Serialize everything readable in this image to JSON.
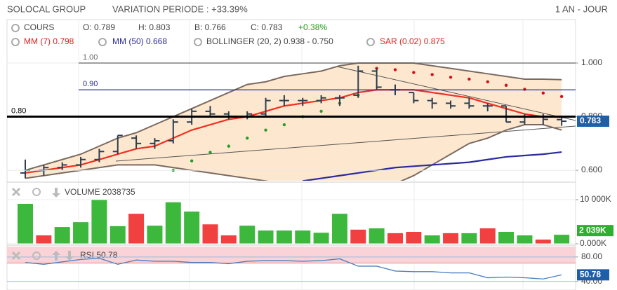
{
  "header": {
    "title": "SOLOCAL GROUP",
    "variation": "VARIATION PERIODE : +33.39%",
    "period": "1 AN - JOUR"
  },
  "legend": {
    "cours": "COURS",
    "open": "O: 0.789",
    "high": "H: 0.803",
    "low": "B: 0.766",
    "close": "C: 0.783",
    "change": "+0.38%",
    "mm7": "MM (7) 0.798",
    "mm50": "MM (50) 0.668",
    "bollinger": "BOLLINGER (20, 2) 0.938 - 0.750",
    "sar": "SAR (0.02) 0.875"
  },
  "chart_data": [
    {
      "type": "ohlc",
      "open": [
        0.59,
        0.6,
        0.61,
        0.62,
        0.64,
        0.67,
        0.72,
        0.7,
        0.71,
        0.78,
        0.82,
        0.81,
        0.8,
        0.81,
        0.86,
        0.86,
        0.86,
        0.87,
        0.88,
        0.97,
        0.9,
        0.89,
        0.86,
        0.85,
        0.85,
        0.84,
        0.84,
        0.78,
        0.8,
        0.789
      ],
      "high": [
        0.64,
        0.62,
        0.63,
        0.65,
        0.68,
        0.73,
        0.73,
        0.72,
        0.79,
        0.83,
        0.84,
        0.82,
        0.82,
        0.87,
        0.88,
        0.87,
        0.88,
        0.88,
        0.99,
        0.98,
        0.92,
        0.89,
        0.87,
        0.86,
        0.87,
        0.85,
        0.84,
        0.81,
        0.81,
        0.803
      ],
      "low": [
        0.57,
        0.58,
        0.6,
        0.61,
        0.63,
        0.66,
        0.68,
        0.68,
        0.7,
        0.77,
        0.8,
        0.79,
        0.79,
        0.8,
        0.84,
        0.84,
        0.85,
        0.84,
        0.87,
        0.9,
        0.88,
        0.85,
        0.83,
        0.83,
        0.83,
        0.82,
        0.78,
        0.77,
        0.77,
        0.766
      ],
      "close": [
        0.6,
        0.61,
        0.62,
        0.64,
        0.67,
        0.73,
        0.7,
        0.71,
        0.78,
        0.82,
        0.81,
        0.8,
        0.81,
        0.86,
        0.86,
        0.86,
        0.87,
        0.87,
        0.97,
        0.91,
        0.9,
        0.86,
        0.85,
        0.84,
        0.84,
        0.84,
        0.78,
        0.8,
        0.79,
        0.783
      ],
      "color": "#2d3e50",
      "series": [
        {
          "name": "BOLLINGER UP",
          "kind": "band-upper",
          "color": "#7a6a60",
          "values": [
            0.6,
            0.62,
            0.64,
            0.66,
            0.69,
            0.72,
            0.74,
            0.77,
            0.8,
            0.83,
            0.86,
            0.89,
            0.92,
            0.93,
            0.95,
            0.96,
            0.97,
            0.99,
            1.0,
            1.0,
            1.0,
            1.0,
            0.99,
            0.98,
            0.97,
            0.96,
            0.95,
            0.94,
            0.94,
            0.938
          ]
        },
        {
          "name": "BOLLINGER DOWN",
          "kind": "band-lower",
          "color": "#7a6a60",
          "values": [
            0.57,
            0.58,
            0.59,
            0.6,
            0.61,
            0.62,
            0.62,
            0.62,
            0.61,
            0.6,
            0.59,
            0.58,
            0.57,
            0.56,
            0.55,
            0.54,
            0.53,
            0.52,
            0.52,
            0.53,
            0.55,
            0.58,
            0.62,
            0.66,
            0.7,
            0.72,
            0.75,
            0.77,
            0.77,
            0.75
          ]
        },
        {
          "name": "MM (7)",
          "kind": "line",
          "color": "#f03020",
          "values": [
            0.59,
            0.6,
            0.61,
            0.62,
            0.64,
            0.66,
            0.68,
            0.69,
            0.72,
            0.75,
            0.77,
            0.79,
            0.8,
            0.82,
            0.84,
            0.85,
            0.86,
            0.87,
            0.89,
            0.9,
            0.9,
            0.9,
            0.89,
            0.88,
            0.87,
            0.85,
            0.83,
            0.81,
            0.8,
            0.798
          ]
        },
        {
          "name": "MM (50)",
          "kind": "line",
          "color": "#2a2aa0",
          "values": [
            null,
            null,
            null,
            null,
            null,
            null,
            null,
            null,
            null,
            null,
            null,
            null,
            null,
            null,
            null,
            0.56,
            0.57,
            0.58,
            0.59,
            0.6,
            0.61,
            0.615,
            0.62,
            0.625,
            0.63,
            0.64,
            0.65,
            0.655,
            0.66,
            0.668
          ]
        },
        {
          "name": "SAR (0.02)",
          "kind": "dots",
          "values": [
            null,
            null,
            null,
            null,
            null,
            null,
            null,
            null,
            0.6,
            0.635,
            0.667,
            0.69,
            0.72,
            0.75,
            0.77,
            0.8,
            0.82,
            0.85,
            0.88,
            0.98,
            0.975,
            0.965,
            0.957,
            0.947,
            0.94,
            0.93,
            0.917,
            0.902,
            0.888,
            0.875
          ],
          "colors": [
            "#2a9a2a",
            "#2a9a2a",
            "#2a9a2a",
            "#2a9a2a",
            "#2a9a2a",
            "#2a9a2a",
            "#2a9a2a",
            "#2a9a2a",
            "#2a9a2a",
            "#2a9a2a",
            "#2a9a2a",
            "#2a9a2a",
            "#2a9a2a",
            "#2a9a2a",
            "#2a9a2a",
            "#2a9a2a",
            "#2a9a2a",
            "#2a9a2a",
            "#2a9a2a",
            "#d0101a",
            "#d0101a",
            "#d0101a",
            "#d0101a",
            "#d0101a",
            "#d0101a",
            "#d0101a",
            "#d0101a",
            "#d0101a",
            "#d0101a",
            "#d0101a"
          ]
        }
      ],
      "levels": [
        {
          "value": 1,
          "label": "1.00",
          "color": "#666666"
        },
        {
          "value": 0.9,
          "label": "0.90",
          "color": "#2a2aa0"
        },
        {
          "value": 0.8,
          "label": "0.80",
          "color": "#000000"
        }
      ],
      "ylim": [
        0.561,
        1.162
      ],
      "yticks": [
        {
          "value": 1,
          "label": "1.000"
        },
        {
          "value": 0.8,
          "label": "0.800"
        },
        {
          "value": 0.6,
          "label": "0.600"
        }
      ],
      "grid": true
    },
    {
      "type": "bar",
      "title": "VOLUME 2038735",
      "values": [
        9050,
        1900,
        3800,
        4900,
        10000,
        4000,
        6800,
        4100,
        9400,
        7300,
        4400,
        1900,
        4100,
        3000,
        3000,
        3000,
        2500,
        6800,
        3200,
        3500,
        2400,
        2700,
        1900,
        2400,
        2400,
        3500,
        2700,
        1900,
        950,
        2039
      ],
      "colors": [
        "#3cb93c",
        "#f04040",
        "#3cb93c",
        "#3cb93c",
        "#3cb93c",
        "#3cb93c",
        "#f04040",
        "#3cb93c",
        "#3cb93c",
        "#3cb93c",
        "#f04040",
        "#f04040",
        "#3cb93c",
        "#3cb93c",
        "#3cb93c",
        "#3cb93c",
        "#3cb93c",
        "#3cb93c",
        "#f04040",
        "#3cb93c",
        "#f04040",
        "#f04040",
        "#3cb93c",
        "#f04040",
        "#3cb93c",
        "#f04040",
        "#3cb93c",
        "#3cb93c",
        "#f04040",
        "#3cb93c"
      ],
      "last_label": "2 039K",
      "ylim": [
        0,
        13650
      ],
      "yticks": [
        {
          "value": 10000,
          "label": "10 000K"
        },
        {
          "value": 0,
          "label": "0.000K"
        }
      ]
    },
    {
      "type": "line",
      "title": "RSI 50.78",
      "color": "#4a7fc0",
      "values": [
        71,
        68,
        72,
        76,
        78,
        68,
        75,
        73,
        73,
        71,
        71,
        69,
        73,
        74,
        74,
        73,
        74,
        77,
        65,
        65,
        57,
        56,
        56,
        54,
        54,
        46,
        47,
        46,
        44,
        50.78
      ],
      "overbought": 70,
      "ylim": [
        26,
        97
      ],
      "yticks": [
        {
          "value": 80,
          "label": "80.00"
        },
        {
          "value": 40,
          "label": "40.00"
        }
      ]
    }
  ]
}
